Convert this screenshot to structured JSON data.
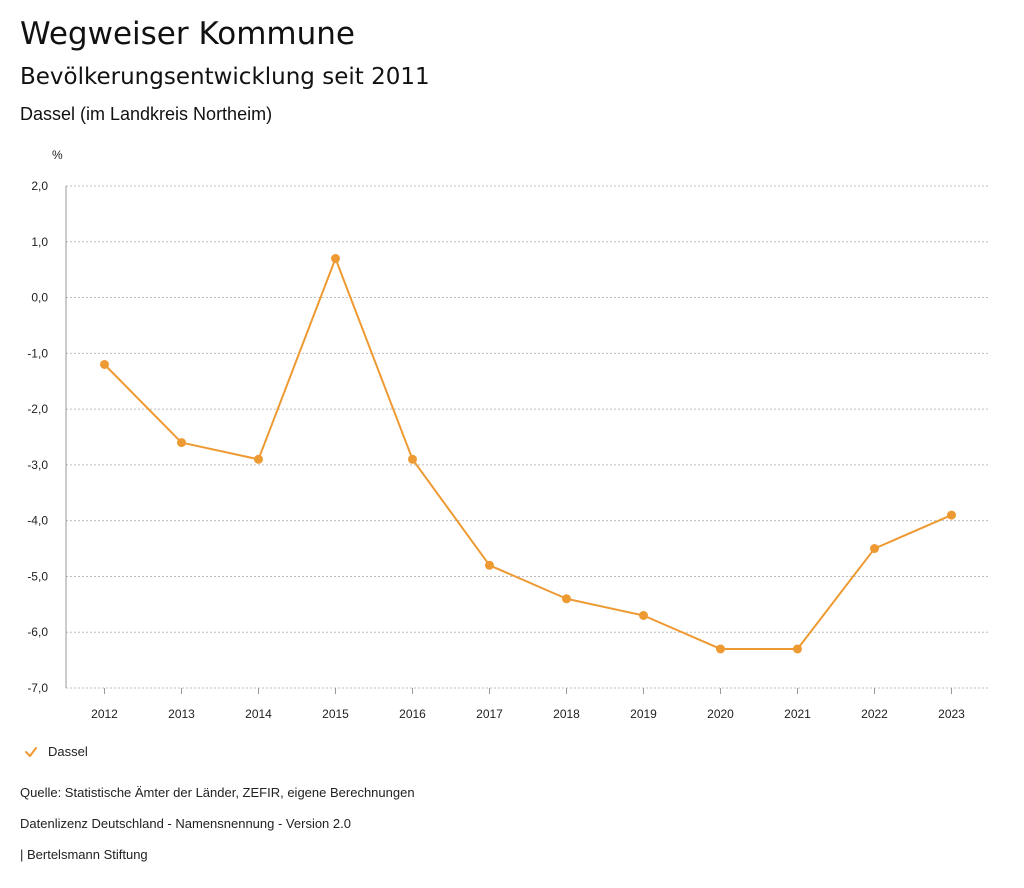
{
  "header": {
    "title": "Wegweiser Kommune",
    "subtitle": "Bevölkerungsentwicklung seit 2011",
    "region": "Dassel (im Landkreis Northeim)"
  },
  "legend": {
    "label": "Dassel"
  },
  "footer": {
    "source": "Quelle: Statistische Ämter der Länder, ZEFIR, eigene Berechnungen",
    "license": "Datenlizenz Deutschland - Namensnennung - Version 2.0",
    "publisher": "| Bertelsmann Stiftung"
  },
  "colors": {
    "series": "#ee9a33",
    "grid": "#bdbdbd",
    "axis": "#999999",
    "text": "#222222"
  },
  "chart_data": {
    "type": "line",
    "title": "Bevölkerungsentwicklung seit 2011",
    "ylabel": "%",
    "xlabel": "",
    "categories": [
      "2012",
      "2013",
      "2014",
      "2015",
      "2016",
      "2017",
      "2018",
      "2019",
      "2020",
      "2021",
      "2022",
      "2023"
    ],
    "series": [
      {
        "name": "Dassel",
        "values": [
          -1.2,
          -2.6,
          -2.9,
          0.7,
          -2.9,
          -4.8,
          -5.4,
          -5.7,
          -6.3,
          -6.3,
          -4.5,
          -3.9
        ]
      }
    ],
    "ylim": [
      -7.0,
      2.0
    ],
    "yticks": [
      2.0,
      1.0,
      0.0,
      -1.0,
      -2.0,
      -3.0,
      -4.0,
      -5.0,
      -6.0,
      -7.0
    ],
    "ytick_labels": [
      "2,0",
      "1,0",
      "0,0",
      "-1,0",
      "-2,0",
      "-3,0",
      "-4,0",
      "-5,0",
      "-6,0",
      "-7,0"
    ],
    "grid": true,
    "legend_position": "bottom-left"
  }
}
